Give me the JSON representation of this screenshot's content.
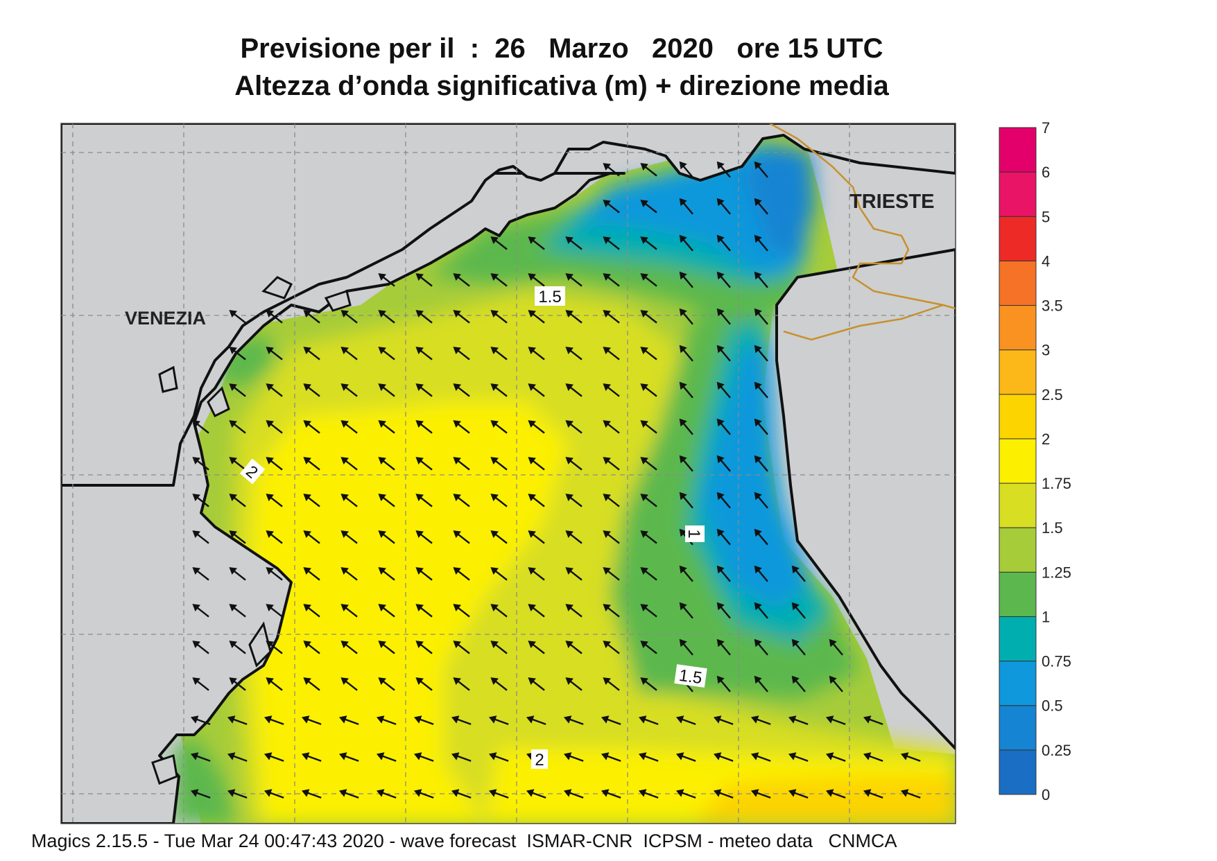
{
  "header": {
    "title_line1": "Previsione per il  :  26   Marzo   2020   ore 15 UTC",
    "title_line2": "Altezza d’onda significativa (m) + direzione media"
  },
  "map": {
    "city_labels": [
      "VENEZIA",
      "TRIESTE"
    ],
    "contour_labels": [
      "1.5",
      "2",
      "1",
      "1.5",
      "2"
    ],
    "colors": {
      "land": "#cdcfd1",
      "border": "#c8902a",
      "coast": "#111111"
    }
  },
  "legend": {
    "levels": [
      "0",
      "0.25",
      "0.5",
      "0.75",
      "1",
      "1.25",
      "1.5",
      "1.75",
      "2",
      "2.5",
      "3",
      "3.5",
      "4",
      "5",
      "6",
      "7"
    ],
    "colors": [
      "#1a6fc4",
      "#1584d2",
      "#0f98dc",
      "#00aeb0",
      "#5cb84e",
      "#a6cc3a",
      "#d8de22",
      "#fcf000",
      "#fcd400",
      "#fcb818",
      "#fa9222",
      "#f67226",
      "#ee2a26",
      "#ea1466",
      "#e3006a"
    ]
  },
  "footer": {
    "text": "Magics 2.15.5 - Tue Mar 24 00:47:43 2020 - wave forecast  ISMAR-CNR  ICPSM - meteo data   CNMCA"
  }
}
